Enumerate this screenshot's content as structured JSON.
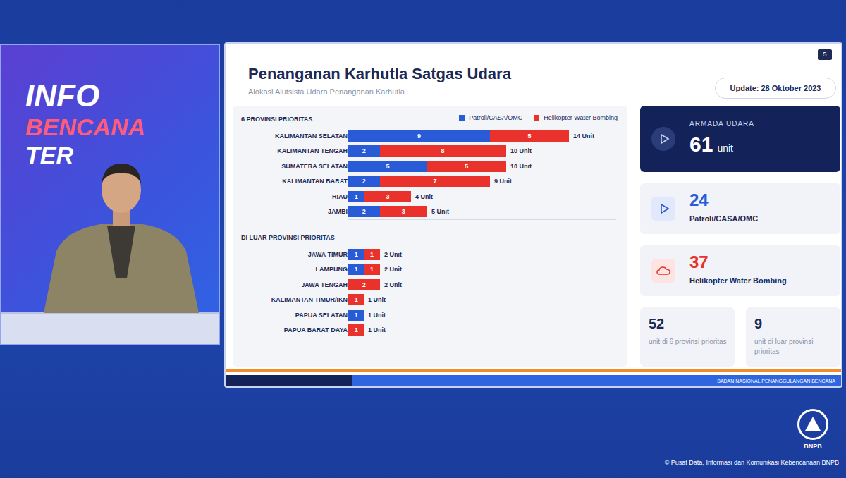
{
  "broadcast": {
    "label_lines": [
      "INFO",
      "BENCANA",
      "TER"
    ],
    "logo_text": "BNPB",
    "credit": "© Pusat Data, Informasi dan Komunikasi Kebencanaan BNPB"
  },
  "slide": {
    "title": "Penanganan Karhutla Satgas Udara",
    "subtitle": "Alokasi Alutsista Udara Penanganan Karhutla",
    "update": "Update: 28 Oktober 2023",
    "page": 5,
    "footer": "BADAN NASIONAL PENANGGULANGAN BENCANA",
    "summary": {
      "fleet": {
        "label": "ARMADA UDARA",
        "value": 61,
        "unit": "unit"
      },
      "by_type": [
        {
          "value": 24,
          "label": "Patroli/CASA/OMC"
        },
        {
          "value": 37,
          "label": "Helikopter Water Bombing"
        }
      ],
      "by_area": [
        {
          "value": 52,
          "label": "unit di 6 provinsi prioritas"
        },
        {
          "value": 9,
          "label": "unit di luar provinsi prioritas"
        }
      ]
    }
  },
  "chart_data": [
    {
      "type": "bar",
      "title": "6 PROVINSI PRIORITAS",
      "orientation": "horizontal",
      "stacked": true,
      "data_labels": true,
      "tick_labels": "y",
      "grid": false,
      "legend": "upper right",
      "categories": [
        "KALIMANTAN SELATAN",
        "KALIMANTAN TENGAH",
        "SUMATERA SELATAN",
        "KALIMANTAN BARAT",
        "RIAU",
        "JAMBI"
      ],
      "series": [
        {
          "name": "Patroli/CASA/OMC",
          "color": "#2a5bd7",
          "values": [
            9,
            2,
            5,
            2,
            1,
            2
          ]
        },
        {
          "name": "Helikopter Water Bombing",
          "color": "#e8322b",
          "values": [
            5,
            8,
            5,
            7,
            3,
            3
          ]
        }
      ],
      "total_labels": [
        "14 Unit",
        "10 Unit",
        "10 Unit",
        "9 Unit",
        "4 Unit",
        "5 Unit"
      ],
      "xlim": [
        0,
        17
      ],
      "xticks": []
    },
    {
      "type": "bar",
      "title": "DI LUAR PROVINSI PRIORITAS",
      "orientation": "horizontal",
      "stacked": true,
      "data_labels": true,
      "tick_labels": "y",
      "grid": false,
      "categories": [
        "JAWA TIMUR",
        "LAMPUNG",
        "JAWA TENGAH",
        "KALIMANTAN TIMUR/IKN",
        "PAPUA SELATAN",
        "PAPUA BARAT DAYA"
      ],
      "series": [
        {
          "name": "Patroli/CASA/OMC",
          "color": "#2a5bd7",
          "values": [
            1,
            1,
            null,
            null,
            1,
            null
          ]
        },
        {
          "name": "Helikopter Water Bombing",
          "color": "#e8322b",
          "values": [
            1,
            1,
            2,
            1,
            null,
            1
          ]
        }
      ],
      "total_labels": [
        "2 Unit",
        "2 Unit",
        "2 Unit",
        "1 Unit",
        "1 Unit",
        "1 Unit"
      ],
      "xlim": [
        0,
        17
      ],
      "xticks": []
    }
  ]
}
